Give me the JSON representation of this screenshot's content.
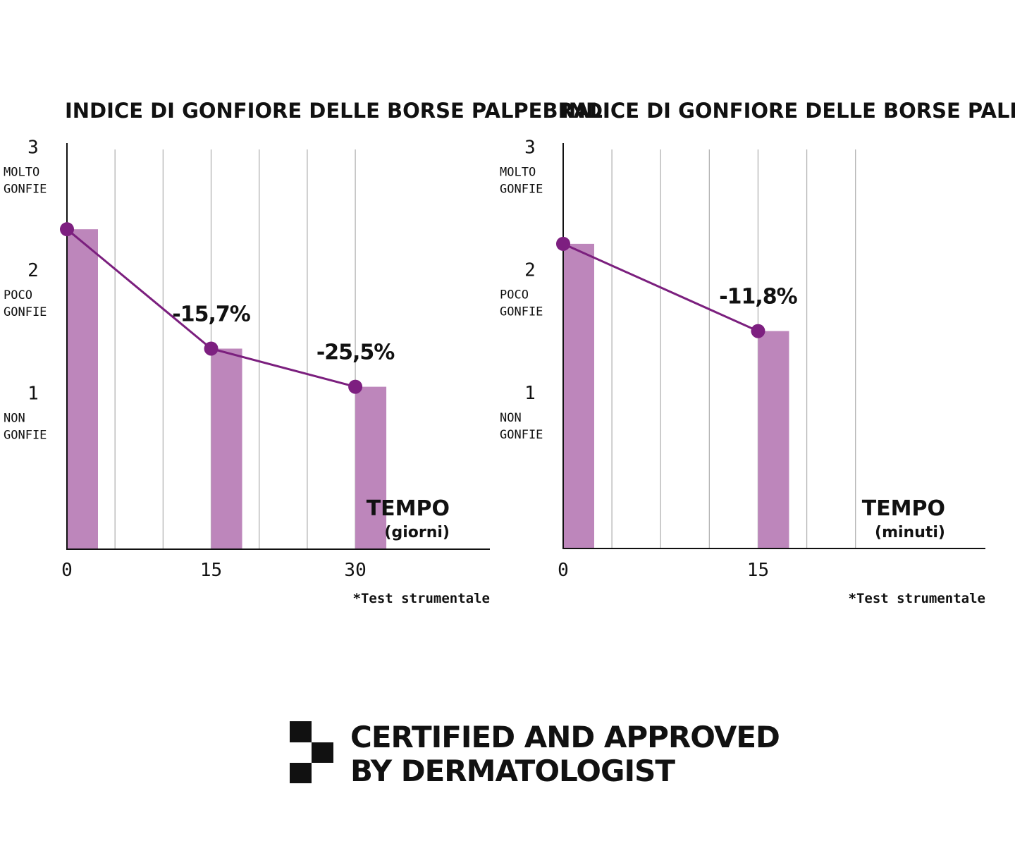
{
  "chart_data": [
    {
      "type": "bar",
      "title": "INDICE DI GONFIORE DELLE BORSE PALPEBRALI",
      "xlabel": "TEMPO",
      "xunit": "(giorni)",
      "x_ticks": [
        "0",
        "15",
        "30"
      ],
      "x_values": [
        0,
        15,
        30
      ],
      "xlim": [
        0,
        44
      ],
      "grid_x": [
        5,
        10,
        15,
        20,
        25,
        30
      ],
      "ylim": [
        0,
        3.3
      ],
      "y_ticks": [
        {
          "value": 3,
          "label": "3",
          "desc": [
            "MOLTO",
            "GONFIE"
          ]
        },
        {
          "value": 2,
          "label": "2",
          "desc": [
            "POCO",
            "GONFIE"
          ]
        },
        {
          "value": 1,
          "label": "1",
          "desc": [
            "NON",
            "GONFIE"
          ]
        }
      ],
      "values": [
        2.6,
        1.63,
        1.32
      ],
      "annotations": [
        "",
        "-15,7%",
        "-25,5%"
      ],
      "note": "*Test strumentale",
      "grid": true
    },
    {
      "type": "bar",
      "title": "INDICE DI GONFIORE DELLE BORSE PALPEBRALI",
      "xlabel": "TEMPO",
      "xunit": "(minuti)",
      "x_ticks": [
        "0",
        "15"
      ],
      "x_values": [
        0,
        15
      ],
      "xlim": [
        0,
        32.5
      ],
      "grid_x": [
        3.75,
        7.5,
        11.25,
        15,
        18.75,
        22.5
      ],
      "ylim": [
        0,
        3.3
      ],
      "y_ticks": [
        {
          "value": 3,
          "label": "3",
          "desc": [
            "MOLTO",
            "GONFIE"
          ]
        },
        {
          "value": 2,
          "label": "2",
          "desc": [
            "POCO",
            "GONFIE"
          ]
        },
        {
          "value": 1,
          "label": "1",
          "desc": [
            "NON",
            "GONFIE"
          ]
        }
      ],
      "values": [
        2.48,
        1.77
      ],
      "annotations": [
        "",
        "-11,8%"
      ],
      "note": "*Test strumentale",
      "grid": true
    }
  ],
  "colors": {
    "bar": "#bd86bb",
    "line": "#7b1f7e",
    "marker": "#7d1f80",
    "grid": "#b3b3b3",
    "axis": "#111111"
  },
  "footer": {
    "logo_icon": "checker-logo-icon",
    "line1": "CERTIFIED AND APPROVED",
    "line2": "BY DERMATOLOGIST"
  }
}
